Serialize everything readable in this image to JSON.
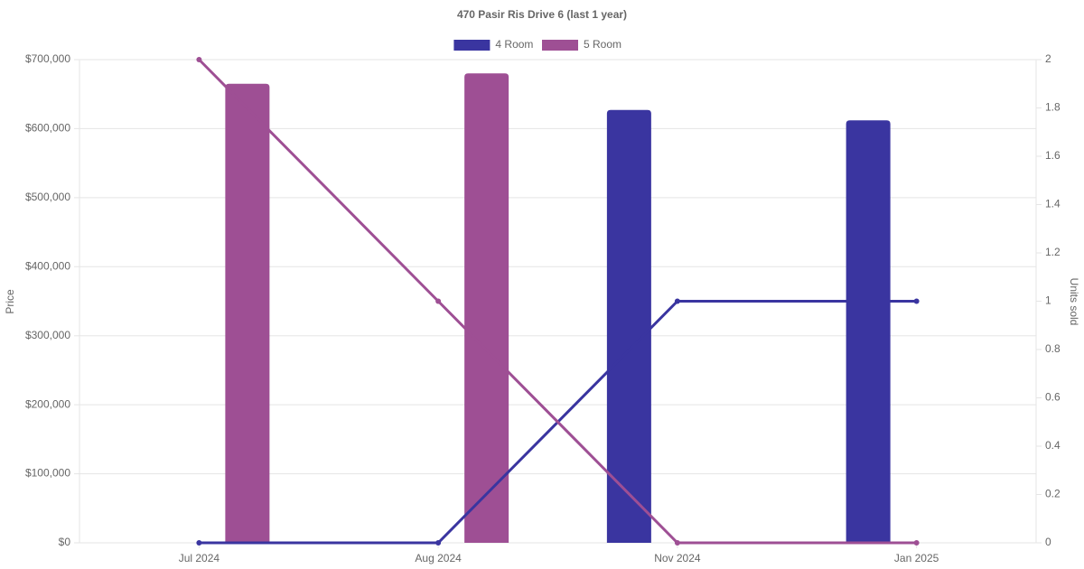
{
  "chart_data": {
    "type": "combo",
    "title": "470 Pasir Ris Drive 6 (last 1 year)",
    "y_label": "Price",
    "y2_label": "Units sold",
    "categories": [
      "Jul 2024",
      "Aug 2024",
      "Nov 2024",
      "Jan 2025"
    ],
    "series": [
      {
        "name": "4 Room",
        "color": "#3a35a0",
        "values": [
          null,
          null,
          627000,
          612000
        ],
        "units_sold": [
          0,
          0,
          1,
          1
        ]
      },
      {
        "name": "5 Room",
        "color": "#9e4f94",
        "values": [
          665000,
          680000,
          null,
          null
        ],
        "units_sold": [
          2,
          1,
          0,
          0
        ]
      }
    ],
    "ylim": [
      0,
      700000
    ],
    "yticks": [
      {
        "value": 0,
        "label": "$0"
      },
      {
        "value": 100000,
        "label": "$100,000"
      },
      {
        "value": 200000,
        "label": "$200,000"
      },
      {
        "value": 300000,
        "label": "$300,000"
      },
      {
        "value": 400000,
        "label": "$400,000"
      },
      {
        "value": 500000,
        "label": "$500,000"
      },
      {
        "value": 600000,
        "label": "$600,000"
      },
      {
        "value": 700000,
        "label": "$700,000"
      }
    ],
    "y2lim": [
      0,
      2
    ],
    "y2ticks": [
      0,
      0.2,
      0.4,
      0.6,
      0.8,
      1,
      1.2,
      1.4,
      1.6,
      1.8,
      2
    ],
    "grid": true
  }
}
